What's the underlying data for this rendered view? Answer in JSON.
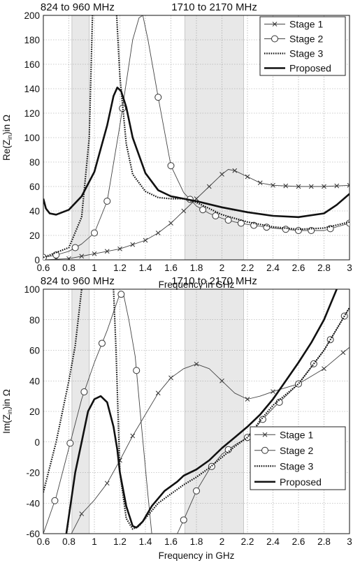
{
  "chart_data": [
    {
      "type": "line",
      "xlabel": "Frequency in GHz",
      "ylabel": "Re(Z_in) in Ω",
      "ylabel_main": "Re(Z",
      "ylabel_sub": "in",
      "ylabel_tail": ")in Ω",
      "xlim": [
        0.6,
        3.0
      ],
      "ylim": [
        0,
        200
      ],
      "xticks": [
        "0.6",
        "0.8",
        "1",
        "1.2",
        "1.4",
        "1.6",
        "1.8",
        "2",
        "2.2",
        "2.4",
        "2.6",
        "2.8",
        "3"
      ],
      "yticks": [
        "0",
        "20",
        "40",
        "60",
        "80",
        "100",
        "120",
        "140",
        "160",
        "180",
        "200"
      ],
      "grid": true,
      "legend_position": "top-right",
      "bands": [
        {
          "label": "824 to 960 MHz",
          "x0": 0.824,
          "x1": 0.96
        },
        {
          "label": "1710 to 2170 MHz",
          "x0": 1.71,
          "x1": 2.17
        }
      ],
      "series": [
        {
          "name": "Stage 1",
          "style": "thin-x",
          "points": [
            [
              0.6,
              0
            ],
            [
              0.8,
              1
            ],
            [
              1.0,
              5
            ],
            [
              1.2,
              9
            ],
            [
              1.4,
              16
            ],
            [
              1.5,
              22
            ],
            [
              1.6,
              30
            ],
            [
              1.7,
              40
            ],
            [
              1.8,
              50
            ],
            [
              1.9,
              60
            ],
            [
              2.0,
              70
            ],
            [
              2.05,
              74
            ],
            [
              2.1,
              73
            ],
            [
              2.2,
              68
            ],
            [
              2.3,
              63
            ],
            [
              2.4,
              61
            ],
            [
              2.6,
              60
            ],
            [
              2.8,
              60
            ],
            [
              3.0,
              61
            ]
          ],
          "markers": [
            0.7,
            0.8,
            0.9,
            1.0,
            1.1,
            1.2,
            1.3,
            1.4,
            1.5,
            1.6,
            1.7,
            1.8,
            1.9,
            2.0,
            2.1,
            2.2,
            2.3,
            2.4,
            2.5,
            2.6,
            2.7,
            2.8,
            2.9,
            3.0
          ]
        },
        {
          "name": "Stage 2",
          "style": "thin-circle",
          "points": [
            [
              0.6,
              2
            ],
            [
              0.7,
              4
            ],
            [
              0.8,
              7
            ],
            [
              0.9,
              13
            ],
            [
              1.0,
              22
            ],
            [
              1.1,
              48
            ],
            [
              1.2,
              110
            ],
            [
              1.25,
              145
            ],
            [
              1.3,
              180
            ],
            [
              1.35,
              198
            ],
            [
              1.38,
              200
            ],
            [
              1.42,
              180
            ],
            [
              1.5,
              133
            ],
            [
              1.6,
              77
            ],
            [
              1.7,
              55
            ],
            [
              1.8,
              44
            ],
            [
              1.9,
              38
            ],
            [
              2.0,
              34
            ],
            [
              2.1,
              31
            ],
            [
              2.2,
              29
            ],
            [
              2.4,
              26
            ],
            [
              2.6,
              24
            ],
            [
              2.8,
              24
            ],
            [
              3.0,
              30
            ]
          ],
          "markers": [
            0.6,
            0.7,
            0.85,
            1.0,
            1.1,
            1.22,
            1.5,
            1.6,
            1.75,
            1.85,
            1.95,
            2.05,
            2.15,
            2.25,
            2.35,
            2.5,
            2.6,
            2.7,
            2.85,
            3.0
          ]
        },
        {
          "name": "Stage 3",
          "style": "dotted",
          "points": [
            [
              0.6,
              2
            ],
            [
              0.8,
              10
            ],
            [
              0.9,
              35
            ],
            [
              0.96,
              100
            ],
            [
              0.985,
              200
            ]
          ],
          "points2": [
            [
              1.175,
              200
            ],
            [
              1.2,
              150
            ],
            [
              1.25,
              95
            ],
            [
              1.3,
              70
            ],
            [
              1.4,
              56
            ],
            [
              1.5,
              51
            ],
            [
              1.6,
              50
            ],
            [
              1.7,
              50
            ],
            [
              1.8,
              47
            ],
            [
              1.9,
              42
            ],
            [
              2.0,
              37
            ],
            [
              2.2,
              31
            ],
            [
              2.4,
              27
            ],
            [
              2.6,
              25
            ],
            [
              2.8,
              26
            ],
            [
              3.0,
              31
            ]
          ]
        },
        {
          "name": "Proposed",
          "style": "thick",
          "points": [
            [
              0.6,
              50
            ],
            [
              0.62,
              42
            ],
            [
              0.65,
              38
            ],
            [
              0.7,
              37
            ],
            [
              0.8,
              41
            ],
            [
              0.9,
              52
            ],
            [
              1.0,
              72
            ],
            [
              1.1,
              110
            ],
            [
              1.15,
              134
            ],
            [
              1.18,
              141
            ],
            [
              1.21,
              138
            ],
            [
              1.25,
              125
            ],
            [
              1.3,
              100
            ],
            [
              1.4,
              71
            ],
            [
              1.5,
              57
            ],
            [
              1.6,
              52
            ],
            [
              1.7,
              50
            ],
            [
              1.8,
              48
            ],
            [
              2.0,
              43
            ],
            [
              2.2,
              39
            ],
            [
              2.4,
              36
            ],
            [
              2.6,
              35
            ],
            [
              2.8,
              38
            ],
            [
              2.9,
              45
            ],
            [
              3.0,
              54
            ]
          ]
        }
      ]
    },
    {
      "type": "line",
      "xlabel": "Frequency in GHz",
      "ylabel": "Im(Z_in) in Ω",
      "ylabel_main": "Im(Z",
      "ylabel_sub": "in",
      "ylabel_tail": ")in Ω",
      "xlim": [
        0.6,
        3.0
      ],
      "ylim": [
        -60,
        100
      ],
      "xticks": [
        "0.6",
        "0.8",
        "1",
        "1.2",
        "1.4",
        "1.6",
        "1.8",
        "2",
        "2.2",
        "2.4",
        "2.6",
        "2.8",
        "3"
      ],
      "yticks": [
        "-60",
        "-40",
        "-20",
        "0",
        "20",
        "40",
        "60",
        "80",
        "100"
      ],
      "grid": true,
      "legend_position": "bottom-right",
      "bands": [
        {
          "label": "824 to 960 MHz",
          "x0": 0.824,
          "x1": 0.96
        },
        {
          "label": "1710 to 2170 MHz",
          "x0": 1.71,
          "x1": 2.17
        }
      ],
      "series": [
        {
          "name": "Stage 1",
          "style": "thin-x",
          "points": [
            [
              0.82,
              -60
            ],
            [
              0.9,
              -47
            ],
            [
              1.0,
              -38
            ],
            [
              1.1,
              -27
            ],
            [
              1.2,
              -12
            ],
            [
              1.3,
              4
            ],
            [
              1.4,
              18
            ],
            [
              1.5,
              32
            ],
            [
              1.6,
              42
            ],
            [
              1.7,
              48
            ],
            [
              1.8,
              51
            ],
            [
              1.9,
              48
            ],
            [
              2.0,
              40
            ],
            [
              2.1,
              32
            ],
            [
              2.2,
              28
            ],
            [
              2.3,
              30
            ],
            [
              2.4,
              33
            ],
            [
              2.6,
              38
            ],
            [
              2.8,
              48
            ],
            [
              3.0,
              62
            ]
          ],
          "markers": [
            0.9,
            1.1,
            1.2,
            1.3,
            1.5,
            1.6,
            1.8,
            2.0,
            2.2,
            2.4,
            2.6,
            2.8,
            2.95
          ]
        },
        {
          "name": "Stage 2",
          "style": "thin-circle",
          "points": [
            [
              0.6,
              -60
            ],
            [
              0.7,
              -36
            ],
            [
              0.8,
              -4
            ],
            [
              0.9,
              28
            ],
            [
              1.0,
              52
            ],
            [
              1.1,
              73
            ],
            [
              1.15,
              85
            ],
            [
              1.2,
              97
            ],
            [
              1.23,
              96
            ],
            [
              1.27,
              80
            ],
            [
              1.32,
              56
            ],
            [
              1.37,
              10
            ],
            [
              1.42,
              -35
            ],
            [
              1.45,
              -60
            ]
          ],
          "points2": [
            [
              1.65,
              -60
            ],
            [
              1.7,
              -51
            ],
            [
              1.8,
              -32
            ],
            [
              1.9,
              -18
            ],
            [
              2.0,
              -8
            ],
            [
              2.1,
              -2
            ],
            [
              2.2,
              3
            ],
            [
              2.3,
              13
            ],
            [
              2.4,
              22
            ],
            [
              2.6,
              38
            ],
            [
              2.8,
              60
            ],
            [
              3.0,
              88
            ]
          ],
          "markers": [
            0.69,
            0.81,
            0.92,
            1.06,
            1.21,
            1.33,
            1.7,
            1.8,
            1.92,
            2.05,
            2.2,
            2.32,
            2.45,
            2.6,
            2.72,
            2.85,
            2.96
          ]
        },
        {
          "name": "Stage 3",
          "style": "dotted",
          "points": [
            [
              0.6,
              -33
            ],
            [
              0.7,
              0
            ],
            [
              0.8,
              40
            ],
            [
              0.85,
              63
            ],
            [
              0.9,
              100
            ]
          ],
          "points2": [
            [
              1.15,
              100
            ],
            [
              1.17,
              60
            ],
            [
              1.2,
              -20
            ],
            [
              1.25,
              -50
            ],
            [
              1.3,
              -57
            ],
            [
              1.35,
              -55
            ],
            [
              1.4,
              -50
            ],
            [
              1.45,
              -45
            ],
            [
              1.5,
              -40
            ],
            [
              1.6,
              -34
            ],
            [
              1.7,
              -28
            ],
            [
              1.8,
              -23
            ],
            [
              1.9,
              -17
            ],
            [
              2.0,
              -10
            ],
            [
              2.1,
              -3
            ],
            [
              2.2,
              3
            ],
            [
              2.3,
              14
            ],
            [
              2.4,
              24
            ],
            [
              2.6,
              38
            ],
            [
              2.8,
              60
            ],
            [
              3.0,
              88
            ]
          ]
        },
        {
          "name": "Proposed",
          "style": "thick",
          "points": [
            [
              0.78,
              -60
            ],
            [
              0.85,
              -20
            ],
            [
              0.9,
              0
            ],
            [
              0.95,
              20
            ],
            [
              1.0,
              28
            ],
            [
              1.05,
              30
            ],
            [
              1.1,
              26
            ],
            [
              1.15,
              10
            ],
            [
              1.18,
              -5
            ],
            [
              1.2,
              -20
            ],
            [
              1.25,
              -42
            ],
            [
              1.3,
              -55
            ],
            [
              1.33,
              -56
            ],
            [
              1.38,
              -52
            ],
            [
              1.45,
              -42
            ],
            [
              1.55,
              -32
            ],
            [
              1.65,
              -26
            ],
            [
              1.7,
              -22
            ],
            [
              1.8,
              -18
            ],
            [
              1.9,
              -12
            ],
            [
              2.0,
              -4
            ],
            [
              2.1,
              3
            ],
            [
              2.2,
              10
            ],
            [
              2.3,
              18
            ],
            [
              2.4,
              28
            ],
            [
              2.5,
              40
            ],
            [
              2.6,
              52
            ],
            [
              2.7,
              65
            ],
            [
              2.8,
              80
            ],
            [
              2.9,
              100
            ]
          ]
        }
      ]
    }
  ]
}
